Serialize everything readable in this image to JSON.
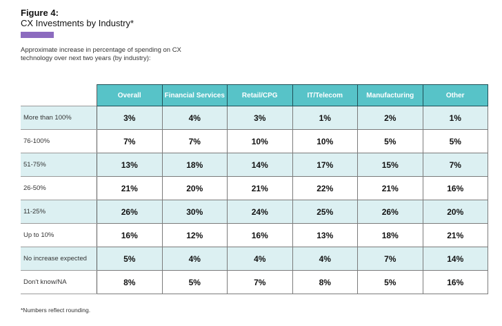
{
  "figure": {
    "label": "Figure 4:",
    "title": "CX Investments by Industry*",
    "subtitle": "Approximate increase in percentage of spending on CX technology over next two years (by industry):",
    "footnote": "*Numbers reflect rounding.",
    "colors": {
      "accent": "#8c6bbf",
      "header_bg": "#57c3c8",
      "row_shade": "#dcf0f2"
    }
  },
  "chart_data": {
    "type": "table",
    "columns": [
      "Overall",
      "Financial Services",
      "Retail/CPG",
      "IT/Telecom",
      "Manufacturing",
      "Other"
    ],
    "rows": [
      {
        "label": "More than 100%",
        "values": [
          "3%",
          "4%",
          "3%",
          "1%",
          "2%",
          "1%"
        ]
      },
      {
        "label": "76-100%",
        "values": [
          "7%",
          "7%",
          "10%",
          "10%",
          "5%",
          "5%"
        ]
      },
      {
        "label": "51-75%",
        "values": [
          "13%",
          "18%",
          "14%",
          "17%",
          "15%",
          "7%"
        ]
      },
      {
        "label": "26-50%",
        "values": [
          "21%",
          "20%",
          "21%",
          "22%",
          "21%",
          "16%"
        ]
      },
      {
        "label": "11-25%",
        "values": [
          "26%",
          "30%",
          "24%",
          "25%",
          "26%",
          "20%"
        ]
      },
      {
        "label": "Up to 10%",
        "values": [
          "16%",
          "12%",
          "16%",
          "13%",
          "18%",
          "21%"
        ]
      },
      {
        "label": "No increase expected",
        "values": [
          "5%",
          "4%",
          "4%",
          "4%",
          "7%",
          "14%"
        ]
      },
      {
        "label": "Don't know/NA",
        "values": [
          "8%",
          "5%",
          "7%",
          "8%",
          "5%",
          "16%"
        ]
      }
    ]
  }
}
